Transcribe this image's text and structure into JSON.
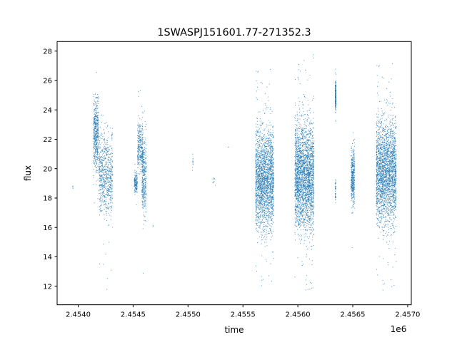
{
  "chart_data": {
    "type": "scatter",
    "title": "1SWASPJ151601.77-271352.3",
    "xlabel": "time",
    "ylabel": "flux",
    "x_offset_label": "1e6",
    "xlim": [
      2453808,
      2457033
    ],
    "ylim": [
      10.74,
      28.65
    ],
    "xticks": [
      2454000,
      2454500,
      2455000,
      2455500,
      2456000,
      2456500,
      2457000
    ],
    "xtick_labels": [
      "2.4540",
      "2.4545",
      "2.4550",
      "2.4555",
      "2.4560",
      "2.4565",
      "2.4570"
    ],
    "yticks": [
      12,
      14,
      16,
      18,
      20,
      22,
      24,
      26,
      28
    ],
    "ytick_labels": [
      "12",
      "14",
      "16",
      "18",
      "20",
      "22",
      "24",
      "26",
      "28"
    ],
    "grid": false,
    "marker_color": "#1f77b4",
    "segments": [
      {
        "t_start": 2453950,
        "t_end": 2453953,
        "flux_median": 18.7,
        "flux_min": 18.4,
        "flux_max": 19.0,
        "n": 5
      },
      {
        "t_start": 2454139,
        "t_end": 2454185,
        "flux_median": 22.3,
        "flux_min": 17.0,
        "flux_max": 27.8,
        "n": 500
      },
      {
        "t_start": 2454190,
        "t_end": 2454314,
        "flux_median": 19.6,
        "flux_min": 11.6,
        "flux_max": 24.0,
        "n": 700
      },
      {
        "t_start": 2454510,
        "t_end": 2454540,
        "flux_median": 19.0,
        "flux_min": 17.5,
        "flux_max": 20.5,
        "n": 150
      },
      {
        "t_start": 2454540,
        "t_end": 2454590,
        "flux_median": 21.5,
        "flux_min": 18.5,
        "flux_max": 26.0,
        "n": 300
      },
      {
        "t_start": 2454580,
        "t_end": 2454620,
        "flux_median": 19.5,
        "flux_min": 12.0,
        "flux_max": 24.0,
        "n": 350
      },
      {
        "t_start": 2454680,
        "t_end": 2454682,
        "flux_median": 16.1,
        "flux_min": 16.0,
        "flux_max": 16.2,
        "n": 2
      },
      {
        "t_start": 2455040,
        "t_end": 2455046,
        "flux_median": 20.5,
        "flux_min": 19.3,
        "flux_max": 21.7,
        "n": 10
      },
      {
        "t_start": 2455225,
        "t_end": 2455250,
        "flux_median": 19.2,
        "flux_min": 18.3,
        "flux_max": 19.8,
        "n": 10
      },
      {
        "t_start": 2455365,
        "t_end": 2455367,
        "flux_median": 21.5,
        "flux_min": 21.4,
        "flux_max": 21.6,
        "n": 2
      },
      {
        "t_start": 2455615,
        "t_end": 2455780,
        "flux_median": 19.3,
        "flux_min": 12.0,
        "flux_max": 26.8,
        "n": 2200
      },
      {
        "t_start": 2455972,
        "t_end": 2456148,
        "flux_median": 19.5,
        "flux_min": 11.5,
        "flux_max": 27.8,
        "n": 2600
      },
      {
        "t_start": 2456340,
        "t_end": 2456348,
        "flux_median": 25.0,
        "flux_min": 22.5,
        "flux_max": 27.2,
        "n": 200
      },
      {
        "t_start": 2456340,
        "t_end": 2456348,
        "flux_median": 18.5,
        "flux_min": 16.8,
        "flux_max": 20.5,
        "n": 40
      },
      {
        "t_start": 2456485,
        "t_end": 2456516,
        "flux_median": 19.5,
        "flux_min": 14.0,
        "flux_max": 22.5,
        "n": 400
      },
      {
        "t_start": 2456714,
        "t_end": 2456896,
        "flux_median": 19.8,
        "flux_min": 11.7,
        "flux_max": 27.2,
        "n": 2400
      }
    ]
  }
}
